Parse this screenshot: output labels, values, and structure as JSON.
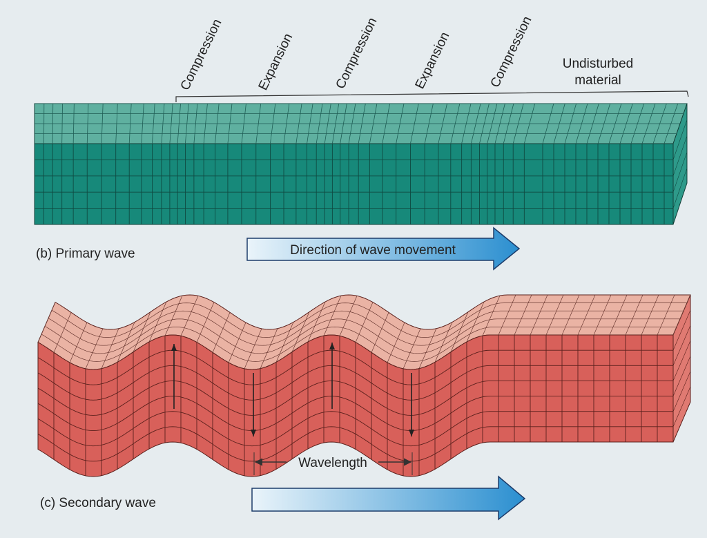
{
  "p_wave": {
    "labels": [
      "Compression",
      "Expansion",
      "Compression",
      "Expansion",
      "Compression"
    ],
    "undisturbed": [
      "Undisturbed",
      "material"
    ],
    "caption": "(b) Primary wave",
    "direction": "Direction of wave movement"
  },
  "s_wave": {
    "wavelength": "Wavelength",
    "caption": "(c) Secondary wave"
  }
}
